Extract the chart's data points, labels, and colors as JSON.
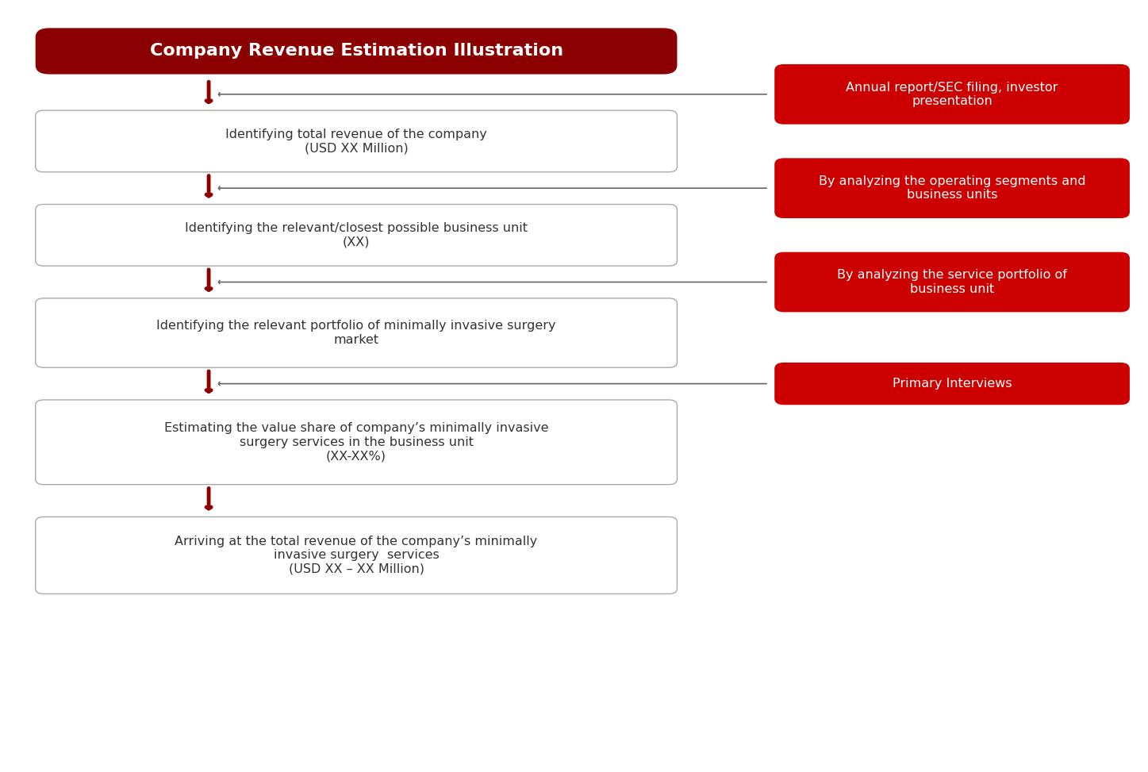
{
  "title": "Company Revenue Estimation Illustration",
  "title_bg": "#8B0000",
  "title_text_color": "#FFFFFF",
  "left_boxes": [
    "Identifying total revenue of the company\n(USD XX Million)",
    "Identifying the relevant/closest possible business unit\n(XX)",
    "Identifying the relevant portfolio of minimally invasive surgery\nmarket",
    "Estimating the value share of company’s minimally invasive\nsurgery services in the business unit\n(XX-XX%)",
    "Arriving at the total revenue of the company’s minimally\ninvasive surgery  services\n(USD XX – XX Million)"
  ],
  "right_boxes": [
    "Annual report/SEC filing, investor\npresentation",
    "By analyzing the operating segments and\nbusiness units",
    "By analyzing the service portfolio of\nbusiness unit",
    "Primary Interviews"
  ],
  "right_box_bg": "#CC0000",
  "right_box_text_color": "#FFFFFF",
  "left_box_bg": "#FFFFFF",
  "left_box_border": "#AAAAAA",
  "left_box_text_color": "#333333",
  "arrow_color": "#8B0000",
  "bg_color": "#FFFFFF",
  "figsize": [
    14.47,
    9.73
  ],
  "dpi": 100
}
